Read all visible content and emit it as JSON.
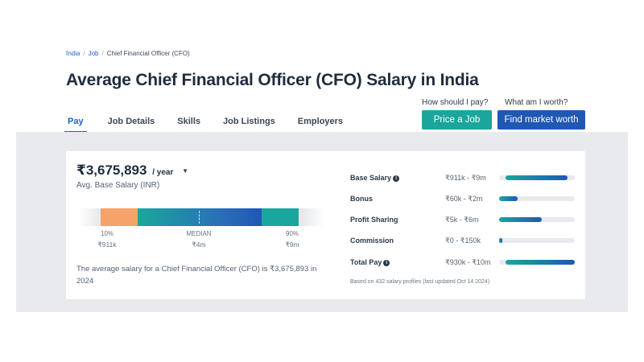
{
  "breadcrumb": {
    "items": [
      "India",
      "Job",
      "Chief Financial Officer (CFO)"
    ],
    "separator": "/"
  },
  "page_title": "Average Chief Financial Officer (CFO) Salary in India",
  "tabs": [
    {
      "label": "Pay",
      "active": true
    },
    {
      "label": "Job Details"
    },
    {
      "label": "Skills"
    },
    {
      "label": "Job Listings"
    },
    {
      "label": "Employers"
    }
  ],
  "cta": {
    "price_question": "How should I pay?",
    "worth_question": "What am I worth?",
    "price_button": "Price a Job",
    "worth_button": "Find market worth"
  },
  "salary": {
    "value": "₹3,675,893",
    "period": "/ year",
    "caption": "Avg. Base Salary (INR)",
    "percentiles": [
      {
        "label": "10%",
        "value": "₹911k"
      },
      {
        "label": "MEDIAN",
        "value": "₹4m"
      },
      {
        "label": "90%",
        "value": "₹9m"
      }
    ],
    "description": "The average salary for a Chief Financial Officer (CFO) is ₹3,675,893 in 2024"
  },
  "compensation": {
    "rows": [
      {
        "label": "Base Salary",
        "info": true,
        "range": "₹911k - ₹9m",
        "fill_start": 0.08,
        "fill_end": 0.9
      },
      {
        "label": "Bonus",
        "info": false,
        "range": "₹60k - ₹2m",
        "fill_start": 0.0,
        "fill_end": 0.24
      },
      {
        "label": "Profit Sharing",
        "info": false,
        "range": "₹5k - ₹6m",
        "fill_start": 0.0,
        "fill_end": 0.56
      },
      {
        "label": "Commission",
        "info": false,
        "range": "₹0 - ₹150k",
        "fill_start": 0.0,
        "fill_end": 0.04
      },
      {
        "label": "Total Pay",
        "info": true,
        "range": "₹930k - ₹10m",
        "fill_start": 0.08,
        "fill_end": 1.0
      }
    ],
    "footnote": "Based on 432 salary profiles (last updated Oct 14 2024)"
  },
  "colors": {
    "primary": "#1f57b5",
    "teal": "#1aa69c",
    "orange": "#f5a36b",
    "title": "#1e2d3d"
  },
  "icons": {
    "info": "info-circle-icon",
    "caret": "caret-down-icon"
  }
}
